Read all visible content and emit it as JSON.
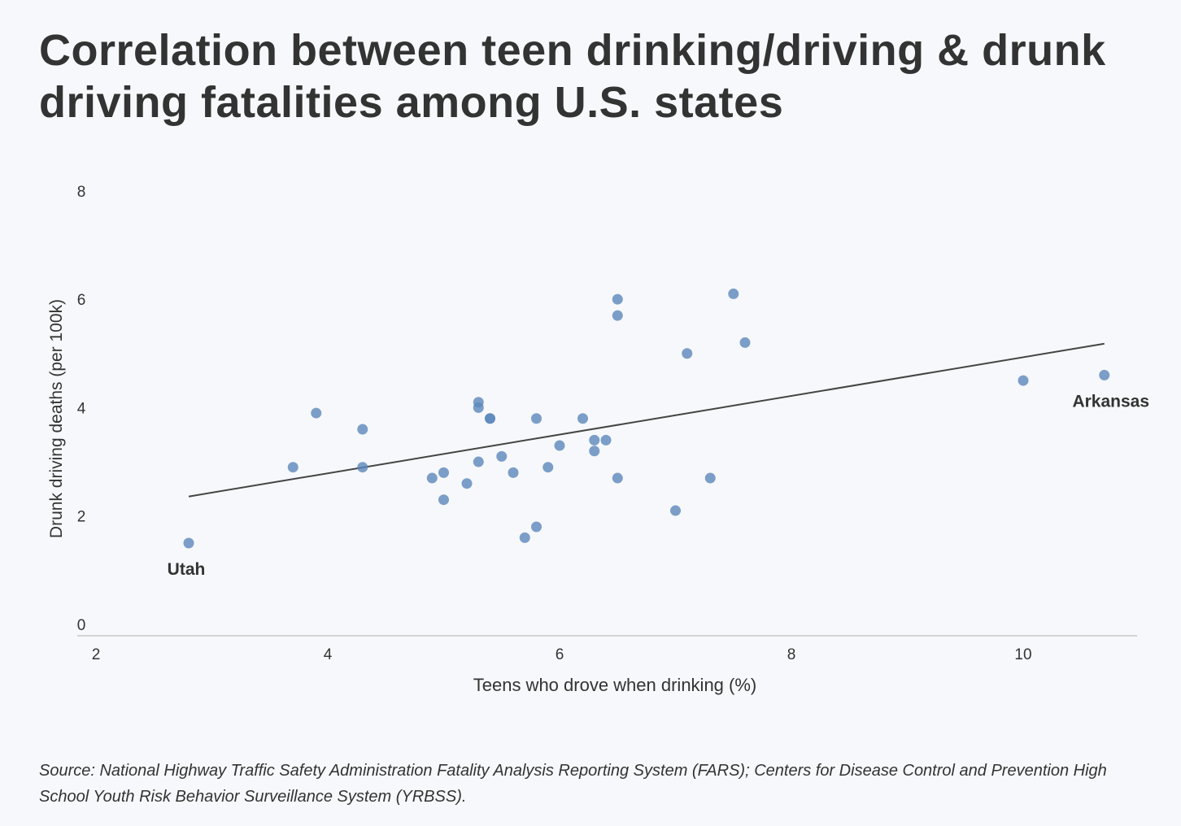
{
  "title": "Correlation between teen drinking/driving & drunk driving fatalities among U.S. states",
  "source": "Source: National Highway Traffic Safety Administration Fatality Analysis Reporting System (FARS); Centers for Disease Control and Prevention High School Youth Risk Behavior Surveillance System (YRBSS).",
  "chart_data": {
    "type": "scatter",
    "xlabel": "Teens who drove when drinking (%)",
    "ylabel": "Drunk driving deaths (per 100k)",
    "xlim": [
      2,
      11
    ],
    "ylim": [
      0,
      8
    ],
    "xticks": [
      2,
      4,
      6,
      8,
      10
    ],
    "yticks": [
      0,
      2,
      4,
      6,
      8
    ],
    "grid": false,
    "point_color": "#5b87bb",
    "line_color": "#444444",
    "points": [
      {
        "x": 2.8,
        "y": 1.5,
        "label": "Utah"
      },
      {
        "x": 3.7,
        "y": 2.9
      },
      {
        "x": 3.9,
        "y": 3.9
      },
      {
        "x": 4.3,
        "y": 3.6
      },
      {
        "x": 4.3,
        "y": 2.9
      },
      {
        "x": 4.9,
        "y": 2.7
      },
      {
        "x": 5.0,
        "y": 2.8
      },
      {
        "x": 5.0,
        "y": 2.3
      },
      {
        "x": 5.2,
        "y": 2.6
      },
      {
        "x": 5.3,
        "y": 4.1
      },
      {
        "x": 5.3,
        "y": 4.0
      },
      {
        "x": 5.3,
        "y": 3.0
      },
      {
        "x": 5.4,
        "y": 3.8
      },
      {
        "x": 5.4,
        "y": 3.8
      },
      {
        "x": 5.5,
        "y": 3.1
      },
      {
        "x": 5.6,
        "y": 2.8
      },
      {
        "x": 5.7,
        "y": 1.6
      },
      {
        "x": 5.8,
        "y": 3.8
      },
      {
        "x": 5.8,
        "y": 1.8
      },
      {
        "x": 5.9,
        "y": 2.9
      },
      {
        "x": 6.0,
        "y": 3.3
      },
      {
        "x": 6.2,
        "y": 3.8
      },
      {
        "x": 6.3,
        "y": 3.4
      },
      {
        "x": 6.3,
        "y": 3.2
      },
      {
        "x": 6.4,
        "y": 3.4
      },
      {
        "x": 6.5,
        "y": 6.0
      },
      {
        "x": 6.5,
        "y": 5.7
      },
      {
        "x": 6.5,
        "y": 2.7
      },
      {
        "x": 7.0,
        "y": 2.1
      },
      {
        "x": 7.1,
        "y": 5.0
      },
      {
        "x": 7.3,
        "y": 2.7
      },
      {
        "x": 7.5,
        "y": 6.1
      },
      {
        "x": 7.6,
        "y": 5.2
      },
      {
        "x": 10.0,
        "y": 4.5
      },
      {
        "x": 10.7,
        "y": 4.6,
        "label": "Arkansas"
      }
    ],
    "trendline": [
      {
        "x": 2.8,
        "y": 2.36
      },
      {
        "x": 10.7,
        "y": 5.18
      }
    ]
  }
}
